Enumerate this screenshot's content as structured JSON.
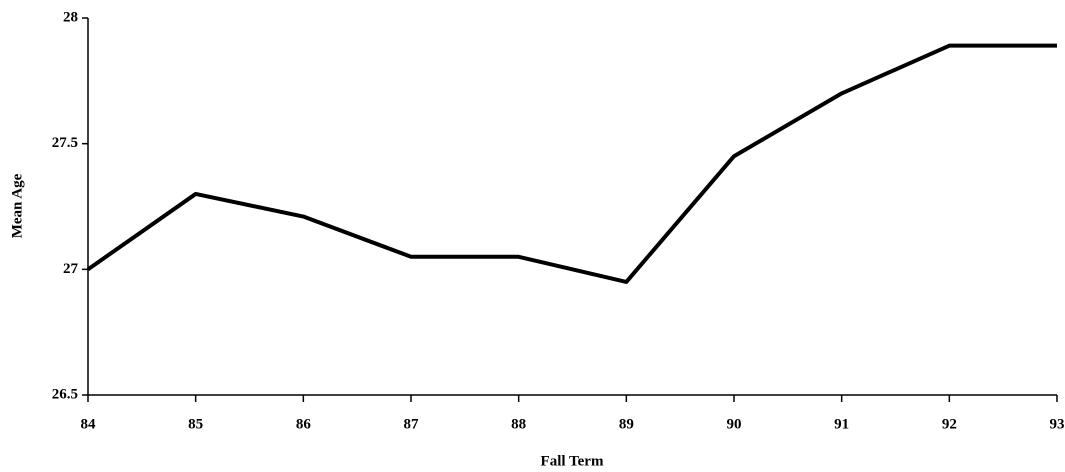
{
  "chart_data": {
    "type": "line",
    "x": [
      84,
      85,
      86,
      87,
      88,
      89,
      90,
      91,
      92,
      93
    ],
    "series": [
      {
        "name": "Mean Age",
        "color": "#000000",
        "values": [
          27.0,
          27.3,
          27.21,
          27.05,
          27.05,
          26.95,
          27.45,
          27.7,
          27.89,
          27.89
        ]
      }
    ],
    "xlim": [
      84,
      93
    ],
    "xticks": [
      84,
      85,
      86,
      87,
      88,
      89,
      90,
      91,
      92,
      93
    ],
    "ylim": [
      26.5,
      28
    ],
    "yticks": [
      26.5,
      27,
      27.5,
      28
    ],
    "xlabel": "Fall Term",
    "ylabel": "Mean Age",
    "grid": false
  }
}
